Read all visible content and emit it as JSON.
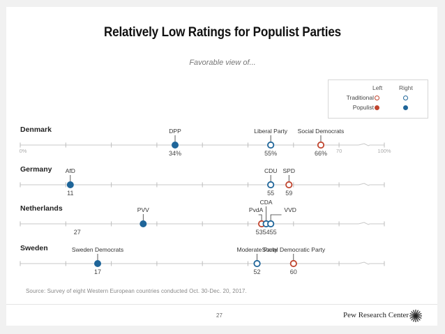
{
  "slide": {
    "title": "Relatively Low Ratings for Populist Parties",
    "subtitle": "Favorable view of...",
    "source": "Source: Survey of eight Western European countries conducted Oct. 30-Dec. 20, 2017.",
    "page_number": "27",
    "brand": "Pew Research Center",
    "brand_icon": "sunburst-logo-icon"
  },
  "legend": {
    "columns": [
      "Left",
      "Right"
    ],
    "rows": [
      "Traditional",
      "Populist"
    ],
    "colors": {
      "left": "#c0452f",
      "right": "#1f6599"
    }
  },
  "chart_data": {
    "type": "scatter",
    "title": "Relatively Low Ratings for Populist Parties",
    "subtitle": "Favorable view of...",
    "xlabel": "",
    "ylabel": "",
    "xlim": [
      0,
      100
    ],
    "axis_break": [
      70,
      100
    ],
    "tick_values": [
      0,
      10,
      20,
      30,
      40,
      50,
      60,
      70,
      100
    ],
    "tick_labels_shown": {
      "0": "0%",
      "70": "70",
      "100": "100%"
    },
    "value_suffix_first_row": "%",
    "grid": false,
    "legend_position": "top-right",
    "rows": [
      {
        "country": "Denmark",
        "parties": [
          {
            "name": "DPP",
            "value": 34,
            "type": "Populist",
            "side": "Right",
            "label": "34%"
          },
          {
            "name": "Liberal Party",
            "value": 55,
            "type": "Traditional",
            "side": "Right",
            "label": "55%"
          },
          {
            "name": "Social Democrats",
            "value": 66,
            "type": "Traditional",
            "side": "Left",
            "label": "66%"
          }
        ]
      },
      {
        "country": "Germany",
        "parties": [
          {
            "name": "AfD",
            "value": 11,
            "type": "Populist",
            "side": "Right",
            "label": "11"
          },
          {
            "name": "CDU",
            "value": 55,
            "type": "Traditional",
            "side": "Right",
            "label": "55"
          },
          {
            "name": "SPD",
            "value": 59,
            "type": "Traditional",
            "side": "Left",
            "label": "59"
          }
        ]
      },
      {
        "country": "Netherlands",
        "parties": [
          {
            "name": "PVV",
            "value": 27,
            "type": "Populist",
            "side": "Right",
            "label": "27"
          },
          {
            "name": "PvdA",
            "value": 53,
            "type": "Traditional",
            "side": "Left",
            "label": "53"
          },
          {
            "name": "CDA",
            "value": 54,
            "type": "Traditional",
            "side": "Right",
            "label": "54"
          },
          {
            "name": "VVD",
            "value": 55,
            "type": "Traditional",
            "side": "Right",
            "label": "55"
          }
        ]
      },
      {
        "country": "Sweden",
        "parties": [
          {
            "name": "Sweden Democrats",
            "value": 17,
            "type": "Populist",
            "side": "Right",
            "label": "17"
          },
          {
            "name": "Moderate Party",
            "value": 52,
            "type": "Traditional",
            "side": "Right",
            "label": "52"
          },
          {
            "name": "Social Democratic Party",
            "value": 60,
            "type": "Traditional",
            "side": "Left",
            "label": "60"
          }
        ]
      }
    ]
  }
}
